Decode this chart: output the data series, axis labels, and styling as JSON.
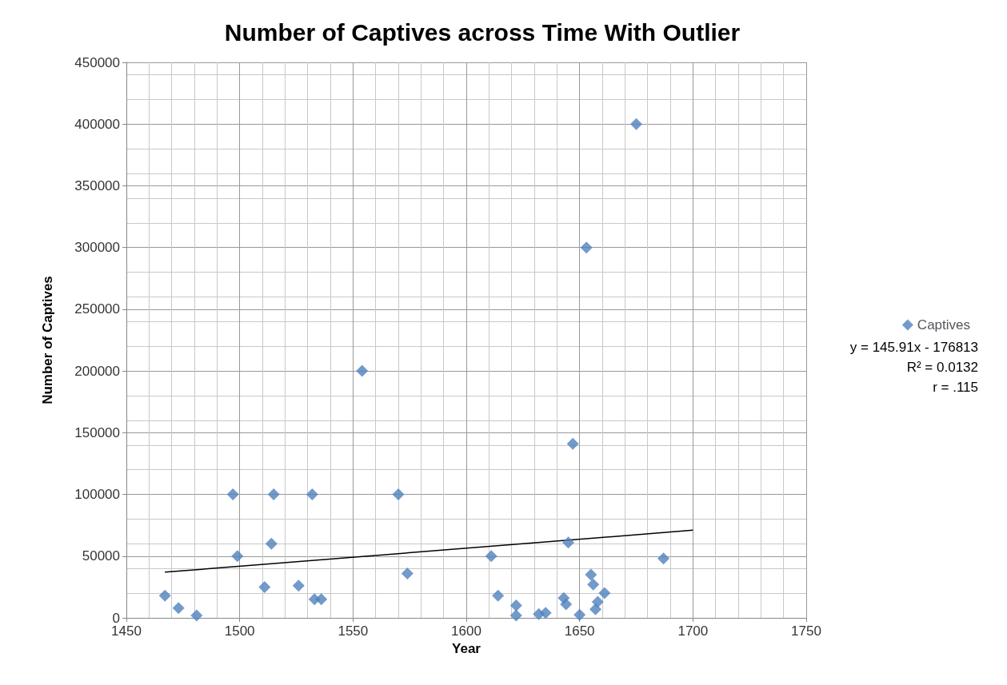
{
  "chart_data": {
    "type": "scatter",
    "title": "Number of Captives across Time With Outlier",
    "xlabel": "Year",
    "ylabel": "Number of Captives",
    "xlim": [
      1450,
      1750
    ],
    "xticks": [
      1450,
      1500,
      1550,
      1600,
      1650,
      1700,
      1750
    ],
    "ylim": [
      0,
      450000
    ],
    "yticks": [
      0,
      50000,
      100000,
      150000,
      200000,
      250000,
      300000,
      350000,
      400000,
      450000
    ],
    "grid": true,
    "legend": "right",
    "marker": "diamond",
    "series": [
      {
        "name": "Captives",
        "color": "#4f81bd",
        "x": [
          1467,
          1473,
          1481,
          1497,
          1499,
          1511,
          1514,
          1515,
          1526,
          1532,
          1533,
          1536,
          1554,
          1570,
          1574,
          1611,
          1614,
          1622,
          1622,
          1632,
          1635,
          1643,
          1644,
          1645,
          1647,
          1650,
          1653,
          1655,
          1656,
          1657,
          1658,
          1661,
          1675,
          1687
        ],
        "values": [
          18000,
          8000,
          2000,
          100000,
          50000,
          25000,
          60000,
          100000,
          26000,
          100000,
          15000,
          15000,
          200000,
          100000,
          36000,
          50000,
          18000,
          10000,
          2000,
          3000,
          4000,
          16000,
          11000,
          61000,
          141000,
          2500,
          300000,
          35000,
          27000,
          7000,
          13000,
          20000,
          400000,
          48000
        ]
      },
      {
        "type": "line",
        "color": "#000000",
        "x": [
          1467,
          1700
        ],
        "values": [
          37000,
          71000
        ],
        "marker": "none"
      }
    ],
    "annotations": [
      "y = 145.91x - 176813",
      "R² = 0.0132",
      "r = .115"
    ]
  }
}
